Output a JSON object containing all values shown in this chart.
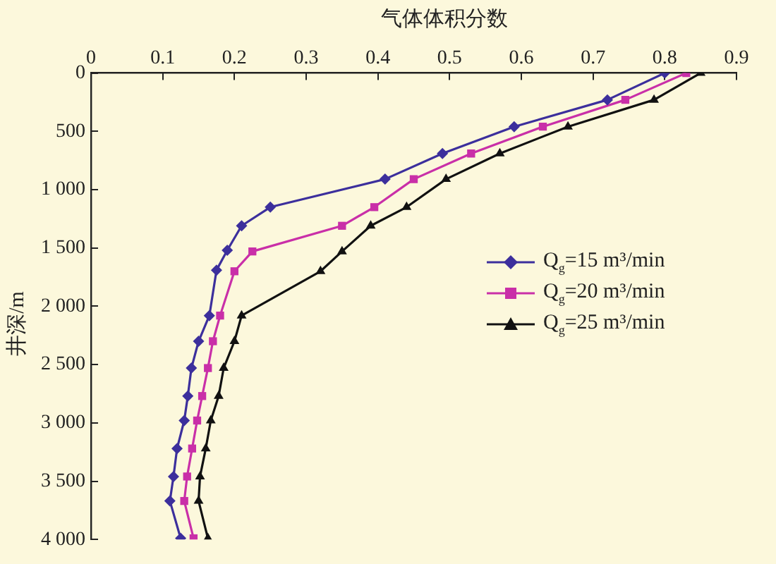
{
  "chart_data": {
    "type": "line",
    "xlabel": "气体体积分数",
    "ylabel": "井深/m",
    "xlim": [
      0,
      0.9
    ],
    "xticks": [
      0,
      0.1,
      0.2,
      0.3,
      0.4,
      0.5,
      0.6,
      0.7,
      0.8,
      0.9
    ],
    "ylim": [
      4000,
      0
    ],
    "yticks": [
      0,
      500,
      {
        "value": 1000,
        "label": "1 000"
      },
      {
        "value": 1500,
        "label": "1 500"
      },
      {
        "value": 2000,
        "label": "2 000"
      },
      {
        "value": 2500,
        "label": "2 500"
      },
      {
        "value": 3000,
        "label": "3 000"
      },
      {
        "value": 3500,
        "label": "3 500"
      },
      {
        "value": 4000,
        "label": "4 000"
      }
    ],
    "grid": false,
    "legend": "right",
    "line_style": "solid",
    "series": [
      {
        "name": "Q$_{g}$=15 m³/min",
        "color": "#3c2f9c",
        "marker": "diamond",
        "x": [
          0.8,
          0.72,
          0.59,
          0.49,
          0.41,
          0.25,
          0.21,
          0.19,
          0.175,
          0.165,
          0.15,
          0.14,
          0.135,
          0.13,
          0.12,
          0.115,
          0.11,
          0.125
        ],
        "values": [
          0,
          230,
          460,
          690,
          910,
          1150,
          1310,
          1520,
          1690,
          2080,
          2300,
          2530,
          2770,
          2980,
          3220,
          3460,
          3670,
          3990
        ]
      },
      {
        "name": "Q$_{g}$=20 m³/min",
        "color": "#c92fa8",
        "marker": "square",
        "x": [
          0.83,
          0.745,
          0.63,
          0.53,
          0.45,
          0.395,
          0.35,
          0.225,
          0.2,
          0.18,
          0.17,
          0.163,
          0.155,
          0.148,
          0.141,
          0.134,
          0.13,
          0.143
        ],
        "values": [
          0,
          230,
          460,
          690,
          910,
          1150,
          1310,
          1530,
          1700,
          2080,
          2300,
          2530,
          2770,
          2980,
          3220,
          3460,
          3670,
          3990
        ]
      },
      {
        "name": "Q$_{g}$=25 m³/min",
        "color": "#111111",
        "marker": "triangle",
        "x": [
          0.85,
          0.785,
          0.665,
          0.57,
          0.495,
          0.44,
          0.39,
          0.35,
          0.32,
          0.21,
          0.2,
          0.185,
          0.178,
          0.167,
          0.16,
          0.152,
          0.15,
          0.163
        ],
        "values": [
          0,
          230,
          460,
          690,
          910,
          1150,
          1310,
          1530,
          1700,
          2080,
          2300,
          2530,
          2770,
          2980,
          3220,
          3460,
          3670,
          3990
        ]
      }
    ]
  }
}
